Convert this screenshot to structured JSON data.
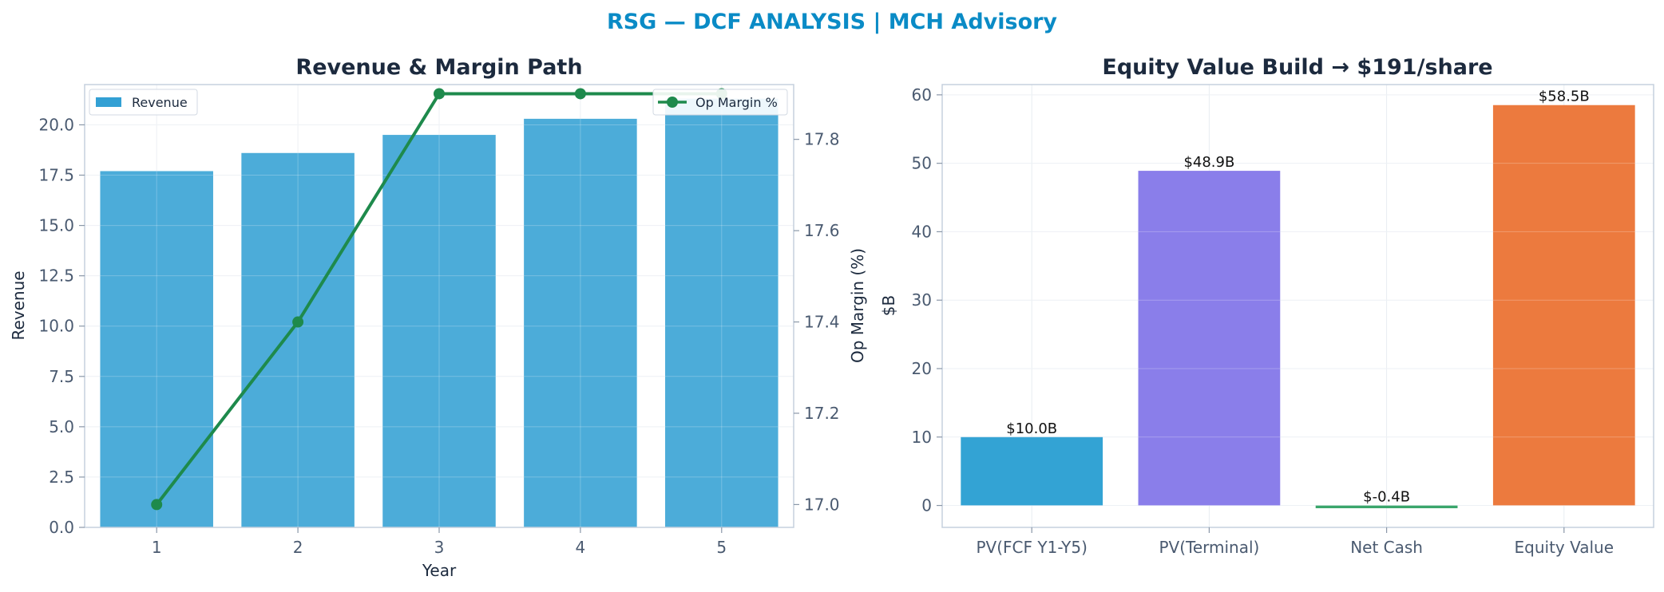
{
  "figure_title": "RSG — DCF ANALYSIS | MCH Advisory",
  "chart_data": [
    {
      "type": "bar",
      "title": "Revenue & Margin Path",
      "xlabel": "Year",
      "ylabel": "Revenue",
      "y2label": "Op Margin (%)",
      "categories": [
        "1",
        "2",
        "3",
        "4",
        "5"
      ],
      "ylim": [
        0,
        22
      ],
      "yticks": [
        "0.0",
        "2.5",
        "5.0",
        "7.5",
        "10.0",
        "12.5",
        "15.0",
        "17.5",
        "20.0"
      ],
      "y2lim": [
        16.95,
        17.92
      ],
      "y2ticks": [
        "17.0",
        "17.2",
        "17.4",
        "17.6",
        "17.8"
      ],
      "grid": true,
      "series": [
        {
          "name": "Revenue",
          "kind": "bar",
          "axis": "left",
          "color": "#33a0d4",
          "values": [
            17.7,
            18.6,
            19.5,
            20.3,
            21.3
          ]
        },
        {
          "name": "Op Margin %",
          "kind": "line",
          "axis": "right",
          "color": "#1e8a4c",
          "values": [
            17.0,
            17.4,
            17.9,
            17.9,
            17.9
          ]
        }
      ],
      "legend_left": "top-left",
      "legend_right": "top-right"
    },
    {
      "type": "bar",
      "title": "Equity Value Build → $191/share",
      "xlabel": "",
      "ylabel": "$B",
      "categories": [
        "PV(FCF Y1-Y5)",
        "PV(Terminal)",
        "Net Cash",
        "Equity Value"
      ],
      "values": [
        10.0,
        48.9,
        -0.4,
        58.5
      ],
      "labels": [
        "$10.0B",
        "$48.9B",
        "$-0.4B",
        "$58.5B"
      ],
      "colors": [
        "#33a3d4",
        "#8a7eea",
        "#3aa66b",
        "#ec7a3e"
      ],
      "ylim": [
        -3.2,
        61.5
      ],
      "yticks": [
        "0",
        "10",
        "20",
        "30",
        "40",
        "50",
        "60"
      ],
      "grid": true
    }
  ]
}
